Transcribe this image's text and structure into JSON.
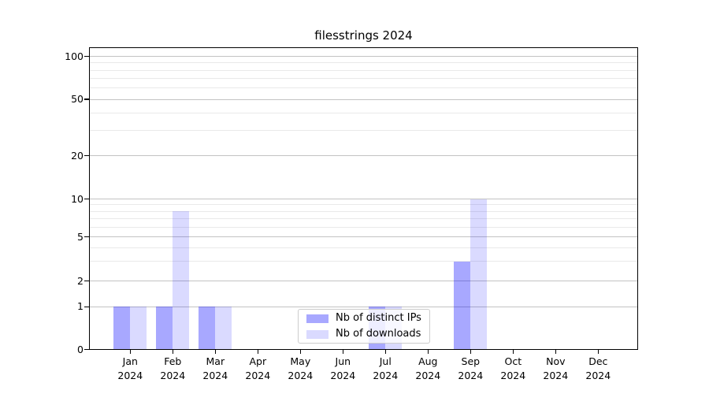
{
  "chart_data": {
    "type": "bar",
    "title": "filesstrings 2024",
    "xlabel": "",
    "ylabel": "",
    "yscale": "symlog",
    "ylim": [
      0,
      116
    ],
    "grid": "on",
    "legend_position": "lower center (inside axes)",
    "categories": [
      "Jan 2024",
      "Feb 2024",
      "Mar 2024",
      "Apr 2024",
      "May 2024",
      "Jun 2024",
      "Jul 2024",
      "Aug 2024",
      "Sep 2024",
      "Oct 2024",
      "Nov 2024",
      "Dec 2024"
    ],
    "series": [
      {
        "name": "Nb of distinct IPs",
        "color": "#0000FF57",
        "color_on_white": "#A8A8FF",
        "values": [
          1,
          1,
          1,
          0,
          0,
          0,
          1,
          0,
          3,
          0,
          0,
          0
        ]
      },
      {
        "name": "Nb of downloads",
        "color": "#0000FF25",
        "color_on_white": "#DADAFF",
        "values": [
          1,
          8,
          1,
          0,
          0,
          0,
          1,
          0,
          10,
          0,
          0,
          0
        ]
      }
    ],
    "ytick_values": [
      0,
      1,
      2,
      5,
      10,
      20,
      50,
      100
    ],
    "minor_gridline_values": [
      3,
      4,
      6,
      7,
      8,
      9,
      30,
      40,
      60,
      70,
      80,
      90
    ],
    "gridline_major_color": "#C3C3C3",
    "gridline_minor_color": "#E9E9E9"
  }
}
